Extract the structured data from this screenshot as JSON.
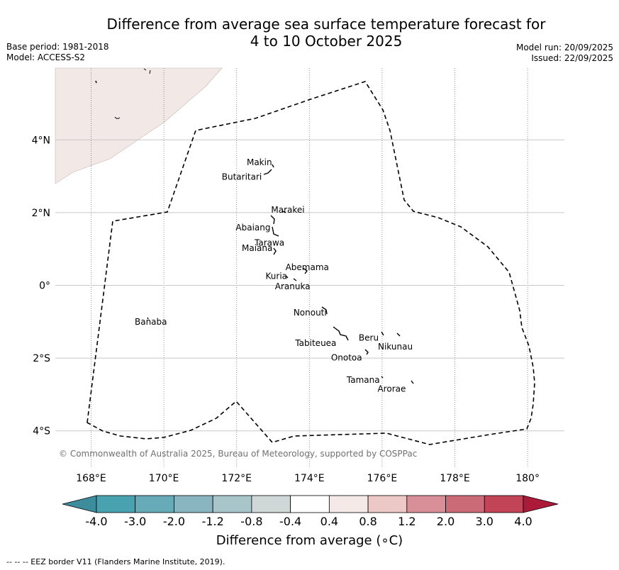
{
  "title": {
    "line1": "Difference from average sea surface temperature forecast for",
    "line2": "4 to 10 October 2025"
  },
  "meta_left": {
    "base_period": "Base period: 1981-2018",
    "model": "Model: ACCESS-S2"
  },
  "meta_right": {
    "model_run": "Model run: 20/09/2025",
    "issued": "Issued: 22/09/2025"
  },
  "map": {
    "lon_range": [
      167,
      181
    ],
    "lat_range": [
      -5,
      6
    ],
    "lon_ticks": [
      "168°E",
      "170°E",
      "172°E",
      "174°E",
      "176°E",
      "178°E",
      "180°"
    ],
    "lat_ticks": [
      "4°N",
      "2°N",
      "0°",
      "2°S",
      "4°S"
    ],
    "copyright": "© Commonwealth of Australia 2025, Bureau of Meteorology, supported by COSPPac",
    "islands": [
      {
        "name": "Makin",
        "lon": 172.98,
        "lat": 3.3
      },
      {
        "name": "Butaritari",
        "lon": 172.8,
        "lat": 3.1
      },
      {
        "name": "Marakei",
        "lon": 173.3,
        "lat": 2.0
      },
      {
        "name": "Abaiang",
        "lon": 172.95,
        "lat": 1.8
      },
      {
        "name": "Tarawa",
        "lon": 173.0,
        "lat": 1.4
      },
      {
        "name": "Maiana",
        "lon": 173.0,
        "lat": 1.0
      },
      {
        "name": "Abemama",
        "lon": 173.85,
        "lat": 0.4
      },
      {
        "name": "Kuria",
        "lon": 173.4,
        "lat": 0.23
      },
      {
        "name": "Aranuka",
        "lon": 173.6,
        "lat": 0.17
      },
      {
        "name": "Banaba",
        "lon": 169.53,
        "lat": -0.87
      },
      {
        "name": "Nonouti",
        "lon": 174.4,
        "lat": -0.65
      },
      {
        "name": "Tabiteuea",
        "lon": 174.8,
        "lat": -1.3
      },
      {
        "name": "Beru",
        "lon": 176.0,
        "lat": -1.33
      },
      {
        "name": "Nikunau",
        "lon": 176.45,
        "lat": -1.35
      },
      {
        "name": "Onotoa",
        "lon": 175.55,
        "lat": -1.85
      },
      {
        "name": "Tamana",
        "lon": 176.0,
        "lat": -2.5
      },
      {
        "name": "Arorae",
        "lon": 176.83,
        "lat": -2.65
      }
    ]
  },
  "colorbar": {
    "labels": [
      "-4.0",
      "-3.0",
      "-2.0",
      "-1.2",
      "-0.8",
      "-0.4",
      "0.4",
      "0.8",
      "1.2",
      "2.0",
      "3.0",
      "4.0"
    ],
    "colors": [
      "#3d8c9b",
      "#49a2b0",
      "#68abb8",
      "#88b5bf",
      "#a8c6ca",
      "#d0d8d7",
      "#ffffff",
      "#f4e9e7",
      "#ecc8c6",
      "#d98f98",
      "#cc6b78",
      "#c24457",
      "#ac1a3a"
    ],
    "title": "Difference from average (∘C)"
  },
  "footer": "--  --  -- EEZ border V11 (Flanders Marine Institute, 2019)."
}
